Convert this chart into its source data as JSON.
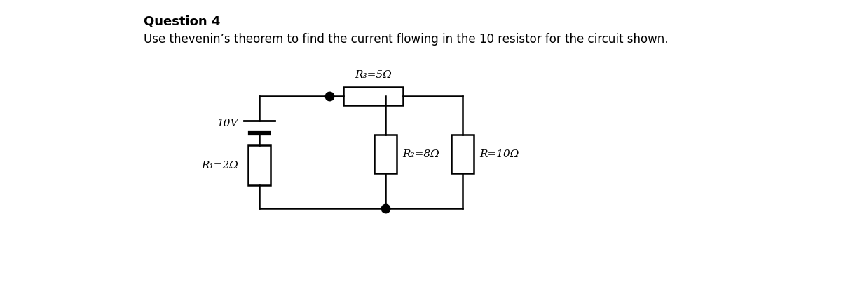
{
  "title": "Question 4",
  "subtitle": "Use thevenin’s theorem to find the current flowing in the 10 resistor for the circuit shown.",
  "bg_color": "#ffffff",
  "line_color": "#000000",
  "title_fontsize": 13,
  "subtitle_fontsize": 12,
  "label_fontsize": 11,
  "circuit": {
    "battery_label": "10V",
    "r1_label": "R₁=2Ω",
    "r2_label": "R₂=8Ω",
    "r3_label": "R₃=5Ω",
    "r_label": "R=10Ω"
  }
}
